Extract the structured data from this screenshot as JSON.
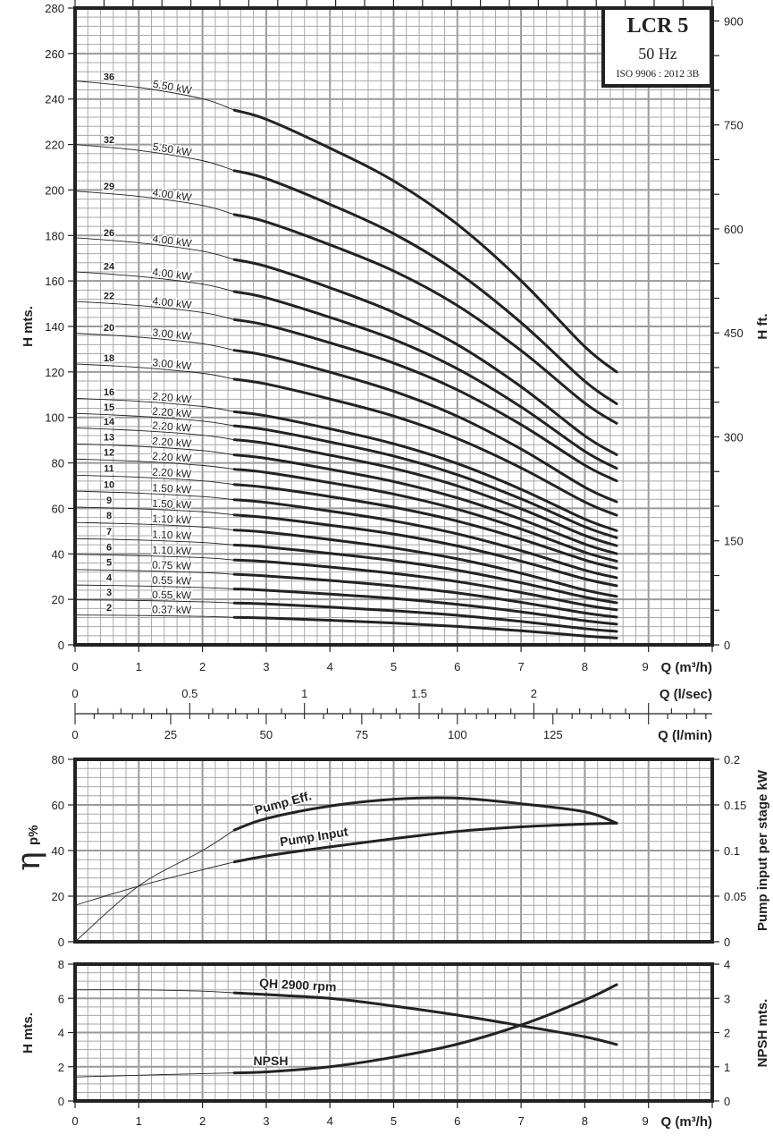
{
  "title_box": {
    "model": "LCR 5",
    "frequency": "50 Hz",
    "standard": "ISO 9906 : 2012 3B"
  },
  "chart_data": [
    {
      "id": "hq",
      "type": "line",
      "xlabel": "Q (m³/h)",
      "xlabel_lsec": "Q (l/sec)",
      "xlabel_lmin": "Q (l/min)",
      "ylabel": "H mts.",
      "ylabel_right": "H ft.",
      "xlim": [
        0,
        10
      ],
      "ylim": [
        0,
        280
      ],
      "x_ticks": [
        "0",
        "1",
        "2",
        "3",
        "4",
        "5",
        "6",
        "7",
        "8",
        "9"
      ],
      "y_ticks": [
        "0",
        "20",
        "40",
        "60",
        "80",
        "100",
        "120",
        "140",
        "160",
        "180",
        "200",
        "220",
        "240",
        "260",
        "280"
      ],
      "y_right_ticks": [
        "0",
        "150",
        "300",
        "450",
        "600",
        "750",
        "900"
      ],
      "lsec_ticks": [
        "0",
        "0.5",
        "1",
        "1.5",
        "2"
      ],
      "lmin_ticks": [
        "0",
        "25",
        "50",
        "75",
        "100",
        "125"
      ],
      "grid": true,
      "q": [
        0,
        1,
        2,
        2.5,
        3,
        4,
        5,
        6,
        7,
        8,
        8.5
      ],
      "series": [
        {
          "stages": "36",
          "power": "5.50 kW",
          "values": [
            248,
            245.1,
            240.1,
            235.1,
            231.1,
            218.4,
            204.0,
            184.9,
            160.1,
            131.1,
            120
          ]
        },
        {
          "stages": "32",
          "power": "5.50 kW",
          "values": [
            220,
            217.4,
            212.9,
            208.5,
            205.0,
            193.7,
            180.8,
            163.8,
            141.7,
            115.9,
            106
          ]
        },
        {
          "stages": "29",
          "power": "4.00 kW",
          "values": [
            199.5,
            197.2,
            193.2,
            189.2,
            186.0,
            175.9,
            164.4,
            149.2,
            129.4,
            106.3,
            97.4
          ]
        },
        {
          "stages": "26",
          "power": "4.00 kW",
          "values": [
            179,
            176.8,
            173.1,
            169.4,
            166.4,
            157.0,
            146.2,
            132.0,
            113.5,
            91.9,
            83.6
          ]
        },
        {
          "stages": "24",
          "power": "4.00 kW",
          "values": [
            164,
            162.0,
            158.6,
            155.3,
            152.6,
            144.0,
            134.3,
            121.4,
            104.6,
            85.1,
            77.6
          ]
        },
        {
          "stages": "22",
          "power": "4.00 kW",
          "values": [
            151,
            149.2,
            146.1,
            143.0,
            140.6,
            132.8,
            123.9,
            112.1,
            96.8,
            79.0,
            72.1
          ]
        },
        {
          "stages": "20",
          "power": "3.00 kW",
          "values": [
            137,
            135.3,
            132.4,
            129.5,
            127.2,
            119.9,
            111.5,
            100.5,
            86.1,
            69.3,
            62.9
          ]
        },
        {
          "stages": "18",
          "power": "3.00 kW",
          "values": [
            123.5,
            122.0,
            119.4,
            116.8,
            114.7,
            108.1,
            100.6,
            90.7,
            77.8,
            62.8,
            57.0
          ]
        },
        {
          "stages": "16",
          "power": "2.20 kW",
          "values": [
            108.4,
            107.1,
            104.8,
            102.5,
            100.7,
            95.0,
            88.4,
            79.7,
            68.4,
            55.3,
            50.2
          ]
        },
        {
          "stages": "15",
          "power": "2.20 kW",
          "values": [
            101.8,
            100.5,
            98.4,
            96.3,
            94.6,
            89.2,
            83.0,
            74.8,
            64.2,
            51.9,
            47.1
          ]
        },
        {
          "stages": "14",
          "power": "2.20 kW",
          "values": [
            95.4,
            94.2,
            92.2,
            90.2,
            88.6,
            83.4,
            77.6,
            69.9,
            59.8,
            48.1,
            43.6
          ]
        },
        {
          "stages": "13",
          "power": "2.20 kW",
          "values": [
            88.4,
            87.3,
            85.4,
            83.5,
            82.0,
            77.2,
            71.8,
            64.6,
            55.2,
            44.3,
            40.1
          ]
        },
        {
          "stages": "12",
          "power": "2.20 kW",
          "values": [
            81.7,
            80.7,
            78.9,
            77.2,
            75.8,
            71.3,
            66.3,
            59.6,
            50.9,
            40.7,
            36.8
          ]
        },
        {
          "stages": "11",
          "power": "2.20 kW",
          "values": [
            74.6,
            73.7,
            72.1,
            70.5,
            69.2,
            65.2,
            60.5,
            54.4,
            46.5,
            37.3,
            33.7
          ]
        },
        {
          "stages": "10",
          "power": "1.50 kW",
          "values": [
            67.6,
            66.7,
            65.2,
            63.8,
            62.6,
            58.8,
            54.5,
            48.8,
            41.4,
            32.8,
            29.5
          ]
        },
        {
          "stages": "9",
          "power": "1.50 kW",
          "values": [
            60.6,
            59.8,
            58.5,
            57.1,
            56.0,
            52.6,
            48.7,
            43.5,
            36.8,
            29.0,
            26.0
          ]
        },
        {
          "stages": "8",
          "power": "1.10 kW",
          "values": [
            53.8,
            53.1,
            51.8,
            50.5,
            49.5,
            46.3,
            42.6,
            37.8,
            31.5,
            24.1,
            21.3
          ]
        },
        {
          "stages": "7",
          "power": "1.10 kW",
          "values": [
            46.7,
            46.1,
            45.0,
            43.9,
            43.0,
            40.2,
            37.0,
            32.8,
            27.3,
            21.0,
            18.5
          ]
        },
        {
          "stages": "6",
          "power": "1.10 kW",
          "values": [
            39.8,
            39.2,
            38.3,
            37.3,
            36.6,
            34.2,
            31.4,
            27.8,
            23.0,
            17.5,
            15.4
          ]
        },
        {
          "stages": "5",
          "power": "0.75 kW",
          "values": [
            33.1,
            32.6,
            31.8,
            31.0,
            30.3,
            28.3,
            25.9,
            22.8,
            18.7,
            14.0,
            12.2
          ]
        },
        {
          "stages": "4",
          "power": "0.55 kW",
          "values": [
            26.3,
            25.9,
            25.2,
            24.6,
            24.0,
            22.3,
            20.4,
            17.8,
            14.5,
            10.6,
            9.1
          ]
        },
        {
          "stages": "3",
          "power": "0.55 kW",
          "values": [
            19.8,
            19.5,
            18.9,
            18.4,
            18.0,
            16.6,
            15.0,
            13.0,
            10.3,
            7.1,
            5.9
          ]
        },
        {
          "stages": "2",
          "power": "0.37 kW",
          "values": [
            13.1,
            12.9,
            12.5,
            12.1,
            11.8,
            10.8,
            9.6,
            8.1,
            6.2,
            3.9,
            3.0
          ]
        }
      ]
    },
    {
      "id": "eff",
      "type": "line",
      "ylabel_symbol": "η",
      "ylabel_sub": "p%",
      "ylabel_right": "Pump input per stage kW",
      "xlim": [
        0,
        10
      ],
      "ylim": [
        0,
        80
      ],
      "y_right_lim": [
        0,
        0.2
      ],
      "y_ticks": [
        "0",
        "20",
        "40",
        "60",
        "80"
      ],
      "y_right_ticks": [
        "0",
        "0.05",
        "0.1",
        "0.15",
        "0.2"
      ],
      "grid": true,
      "q": [
        0,
        1,
        2,
        2.5,
        3,
        4,
        5,
        6,
        7,
        8,
        8.5
      ],
      "series": [
        {
          "name": "Pump Eff.",
          "axis": "left",
          "values": [
            0,
            24.5,
            40,
            49,
            54,
            59.5,
            62.5,
            63,
            60.5,
            57,
            52
          ]
        },
        {
          "name": "Pump Input",
          "axis": "right",
          "values": [
            0.04,
            0.061,
            0.079,
            0.0875,
            0.094,
            0.104,
            0.113,
            0.121,
            0.126,
            0.129,
            0.13
          ]
        }
      ]
    },
    {
      "id": "npsh",
      "type": "line",
      "xlabel": "Q (m³/h)",
      "ylabel": "H mts.",
      "ylabel_right": "NPSH mts.",
      "xlim": [
        0,
        10
      ],
      "ylim": [
        0,
        8
      ],
      "y_right_lim": [
        0,
        4
      ],
      "x_ticks": [
        "0",
        "1",
        "2",
        "3",
        "4",
        "5",
        "6",
        "7",
        "8",
        "9"
      ],
      "y_ticks": [
        "0",
        "2",
        "4",
        "6",
        "8"
      ],
      "y_right_ticks": [
        "0",
        "1",
        "2",
        "3",
        "4"
      ],
      "grid": true,
      "q": [
        0,
        1,
        2,
        2.5,
        3,
        4,
        5,
        6,
        7,
        8,
        8.5
      ],
      "series": [
        {
          "name": "QH 2900 rpm",
          "axis": "left",
          "values": [
            6.5,
            6.5,
            6.42,
            6.32,
            6.22,
            6.0,
            5.55,
            5.02,
            4.4,
            3.75,
            3.3
          ]
        },
        {
          "name": "NPSH",
          "axis": "right",
          "values": [
            0.7,
            0.75,
            0.8,
            0.82,
            0.85,
            1.0,
            1.28,
            1.66,
            2.22,
            2.95,
            3.4
          ]
        }
      ]
    }
  ]
}
